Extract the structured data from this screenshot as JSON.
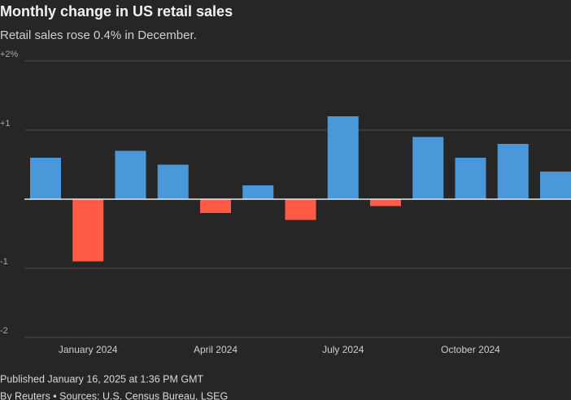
{
  "chart_data": {
    "type": "bar",
    "title": "Monthly change in US retail sales",
    "subtitle": "Retail sales rose 0.4% in December.",
    "categories": [
      null,
      "January 2024",
      null,
      null,
      "April 2024",
      null,
      null,
      "July 2024",
      null,
      null,
      "October 2024",
      null,
      null
    ],
    "values": [
      0.6,
      -0.9,
      0.7,
      0.5,
      -0.2,
      0.2,
      -0.3,
      1.2,
      -0.1,
      0.9,
      0.6,
      0.8,
      0.4
    ],
    "positive_color": "#4a98d9",
    "negative_color": "#ff5a45",
    "ylim": [
      -2,
      2
    ],
    "yticks": [
      {
        "value": 2,
        "label": "+2%"
      },
      {
        "value": 1,
        "label": "+1"
      },
      -1,
      -2
    ],
    "grid": true,
    "published": "Published January 16, 2025 at 1:36 PM GMT",
    "source": "By Reuters • Sources: U.S. Census Bureau, LSEG"
  }
}
